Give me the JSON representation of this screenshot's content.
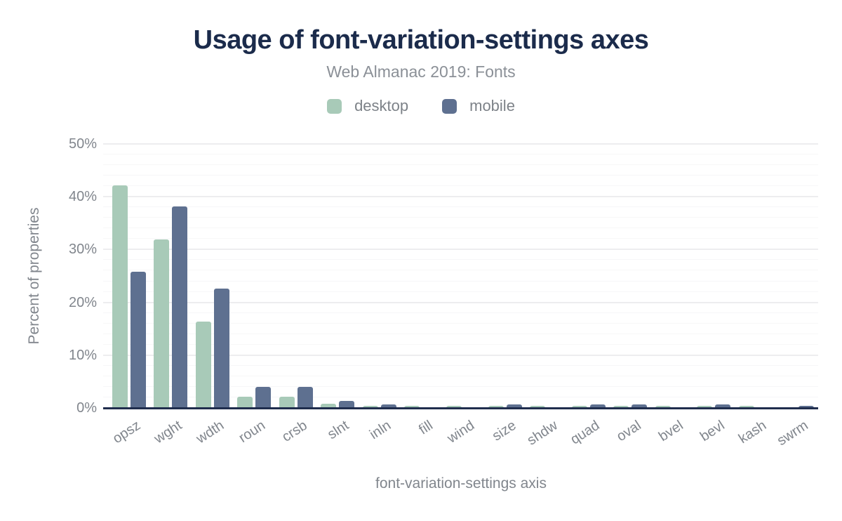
{
  "chart_data": {
    "type": "bar",
    "title": "Usage of font-variation-settings axes",
    "subtitle": "Web Almanac 2019: Fonts",
    "xlabel": "font-variation-settings axis",
    "ylabel": "Percent of properties",
    "categories": [
      "opsz",
      "wght",
      "wdth",
      "roun",
      "crsb",
      "slnt",
      "inln",
      "fill",
      "wind",
      "size",
      "shdw",
      "quad",
      "oval",
      "bvel",
      "bevl",
      "kash",
      "swrm"
    ],
    "series": [
      {
        "name": "desktop",
        "color": "#a8cab8",
        "values": [
          42.2,
          31.9,
          16.4,
          2.1,
          2.1,
          0.8,
          0.4,
          0.4,
          0.35,
          0.35,
          0.35,
          0.4,
          0.4,
          0.4,
          0.4,
          0.4,
          0.15
        ]
      },
      {
        "name": "mobile",
        "color": "#5e7090",
        "values": [
          25.8,
          38.2,
          22.6,
          4.0,
          4.0,
          1.3,
          0.7,
          0.05,
          0.05,
          0.6,
          0.05,
          0.6,
          0.6,
          0.05,
          0.6,
          0.05,
          0.45
        ]
      }
    ],
    "ylim": [
      0,
      50
    ],
    "yticks": [
      0,
      10,
      20,
      30,
      40,
      50
    ],
    "ytick_unit": "%",
    "minor_grid_step": 2,
    "grid": true,
    "legend_position": "top"
  },
  "colors": {
    "title": "#1b2b4b",
    "subtitle": "#8b9097",
    "legend_label": "#7d8288",
    "tick_label": "#81868d",
    "axis_title": "#81868d",
    "axis_line": "#1f2d4d",
    "major_grid": "#ededef",
    "minor_grid": "#f7f7f8",
    "background": "#ffffff"
  }
}
